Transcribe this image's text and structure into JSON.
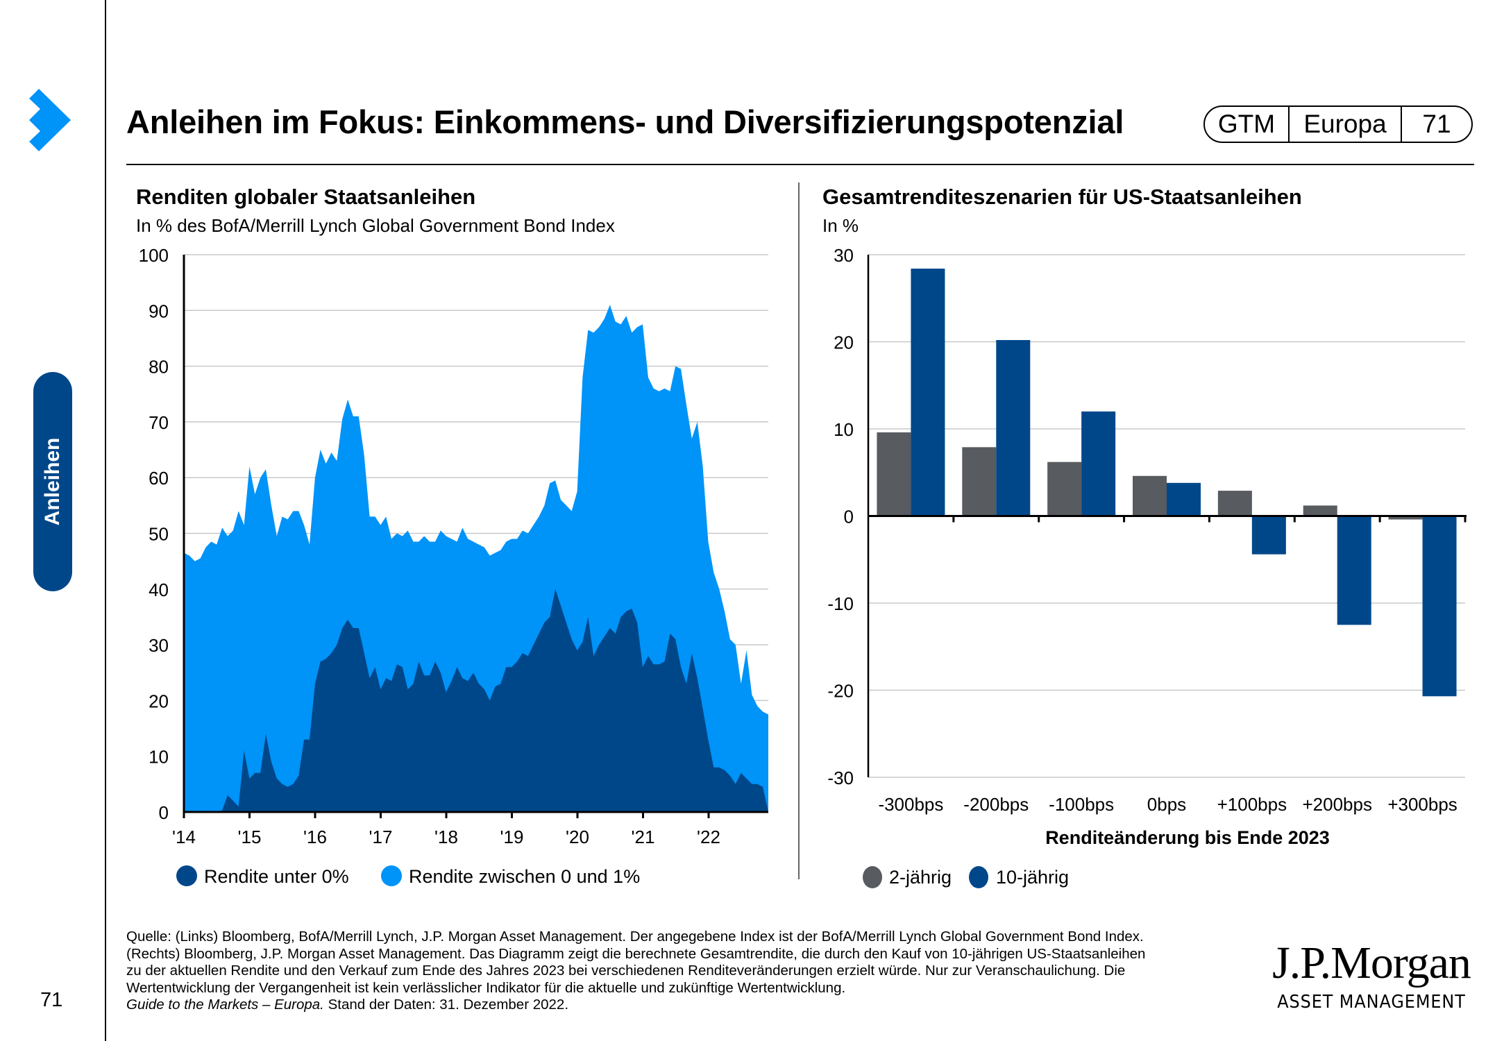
{
  "header": {
    "title": "Anleihen im Fokus: Einkommens- und Diversifizierungspotenzial",
    "pill": [
      "GTM",
      "Europa",
      "71"
    ],
    "chevron_icon": "chevron-right-icon"
  },
  "sidebar": {
    "section_label": "Anleihen",
    "page_number": "71"
  },
  "colors": {
    "accent": "#0093f8",
    "navy": "#00478a",
    "gray_bar": "#585b5f",
    "gridline": "#c8c8c8"
  },
  "footer": {
    "lines": [
      "Quelle: (Links) Bloomberg, BofA/Merrill Lynch, J.P. Morgan Asset Management. Der angegebene Index ist der BofA/Merrill Lynch Global Government Bond Index.",
      "(Rechts) Bloomberg, J.P. Morgan Asset Management. Das Diagramm zeigt die berechnete Gesamtrendite, die durch den Kauf von 10-jährigen US-Staatsanleihen",
      "zu der aktuellen Rendite und den Verkauf zum Ende des Jahres 2023 bei verschiedenen Renditeveränderungen erzielt würde. Nur zur Veranschaulichung. Die",
      "Wertentwicklung der Vergangenheit ist kein verlässlicher Indikator für die aktuelle und zukünftige Wertentwicklung."
    ],
    "guide_italic": "Guide to the Markets – Europa.",
    "as_of": " Stand der Daten: 31. Dezember 2022."
  },
  "logo": {
    "main": "J.P.Morgan",
    "sub": "ASSET MANAGEMENT"
  },
  "chart_data": [
    {
      "type": "area",
      "stacked": true,
      "title": "Renditen globaler Staatsanleihen",
      "subtitle": "In % des BofA/Merrill Lynch Global Government Bond Index",
      "xlabel": "",
      "ylabel": "",
      "ylim": [
        0,
        100
      ],
      "yticks": [
        0,
        10,
        20,
        30,
        40,
        50,
        60,
        70,
        80,
        90,
        100
      ],
      "xticks": [
        "'14",
        "'15",
        "'16",
        "'17",
        "'18",
        "'19",
        "'20",
        "'21",
        "'22"
      ],
      "x_range": [
        "2014-01",
        "2022-12"
      ],
      "frequency": "monthly",
      "grid": true,
      "legend": "bottom",
      "series": [
        {
          "name": "Rendite unter 0%",
          "color": "#00478a",
          "values": [
            0,
            0,
            0,
            0,
            0,
            0,
            0,
            0.3,
            3,
            2,
            1,
            11,
            6,
            7,
            7,
            14,
            9,
            6,
            5,
            4.5,
            5,
            6.5,
            13,
            13,
            23,
            27,
            27.5,
            28.5,
            30,
            33,
            34.5,
            33,
            33,
            28.5,
            24,
            26,
            22,
            24,
            23.5,
            26.5,
            26,
            22,
            23,
            27,
            24.5,
            24.5,
            27,
            25,
            21.5,
            23.5,
            26,
            24,
            23.5,
            25,
            23,
            22,
            20,
            22.5,
            23,
            26,
            26,
            27,
            28.5,
            28,
            30,
            32,
            34,
            35,
            40,
            37,
            34,
            31,
            29,
            30.5,
            35,
            28,
            30,
            31.5,
            33,
            32,
            35,
            36,
            36.5,
            34,
            26,
            28,
            26.5,
            26.5,
            27,
            32,
            31,
            26,
            23,
            28.5,
            24,
            18.5,
            13,
            8,
            8,
            7.5,
            6.5,
            5,
            7,
            6,
            5,
            5,
            4.5,
            0
          ]
        },
        {
          "name": "Rendite zwischen 0 und 1%",
          "color": "#0093f8",
          "values_total_top": [
            46.5,
            46,
            45,
            45.5,
            47.5,
            48.5,
            48,
            51,
            49.5,
            50.5,
            54,
            51.5,
            62,
            57,
            60,
            61.5,
            55,
            49.5,
            53,
            52.5,
            54,
            54,
            51.5,
            48,
            60,
            65,
            62.5,
            64.5,
            63,
            70.5,
            74,
            71,
            71,
            64,
            53,
            53,
            51.5,
            53,
            49,
            50,
            49.5,
            50.5,
            48.5,
            48.5,
            49.5,
            48.5,
            48.5,
            50.5,
            49.5,
            49,
            48.5,
            51,
            49,
            48.5,
            48,
            47.5,
            46,
            46.5,
            47,
            48.5,
            49,
            49,
            50.5,
            50,
            51.5,
            53,
            55,
            59,
            59.5,
            56,
            55,
            54,
            57.5,
            78,
            86.5,
            86,
            87,
            88.5,
            91,
            88,
            87.5,
            89,
            86,
            87,
            87.5,
            78,
            76,
            75.5,
            76,
            75.5,
            80,
            79.5,
            73,
            67,
            70,
            62,
            48.5,
            43,
            40,
            36,
            31,
            30,
            23,
            29,
            21,
            19,
            18,
            17.5
          ]
        }
      ]
    },
    {
      "type": "bar",
      "title": "Gesamtrenditeszenarien für US-Staatsanleihen",
      "subtitle": "In %",
      "xlabel": "Renditeänderung bis Ende 2023",
      "ylabel": "",
      "ylim": [
        -30,
        30
      ],
      "yticks": [
        30,
        20,
        10,
        0,
        -10,
        -20,
        -30
      ],
      "categories": [
        "-300bps",
        "-200bps",
        "-100bps",
        "0bps",
        "+100bps",
        "+200bps",
        "+300bps"
      ],
      "grid": true,
      "legend": "bottom-left",
      "series": [
        {
          "name": "2-jährig",
          "color": "#585b5f",
          "values": [
            9.6,
            7.9,
            6.2,
            4.6,
            2.9,
            1.2,
            -0.4
          ]
        },
        {
          "name": "10-jährig",
          "color": "#00478a",
          "values": [
            28.4,
            20.2,
            12.0,
            3.8,
            -4.4,
            -12.5,
            -20.7
          ]
        }
      ]
    }
  ]
}
